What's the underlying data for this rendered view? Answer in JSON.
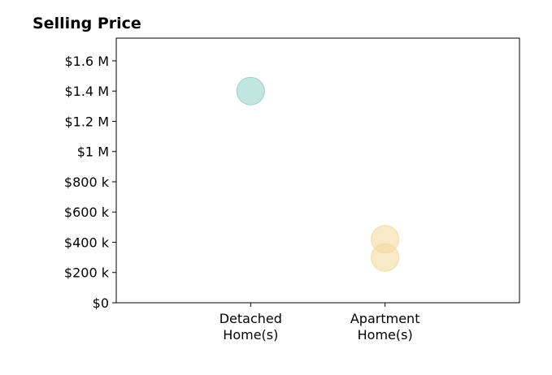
{
  "chart_data": {
    "type": "scatter",
    "title": "Selling Price",
    "xlabel": "",
    "ylabel": "",
    "categories": [
      {
        "lines": [
          "Detached",
          "Home(s)"
        ]
      },
      {
        "lines": [
          "Apartment",
          "Home(s)"
        ]
      }
    ],
    "xlim": [
      0,
      3
    ],
    "ylim": [
      0,
      1750000
    ],
    "y_ticks": [
      {
        "value": 0,
        "label": "$0"
      },
      {
        "value": 200000,
        "label": "$200 k"
      },
      {
        "value": 400000,
        "label": "$400 k"
      },
      {
        "value": 600000,
        "label": "$600 k"
      },
      {
        "value": 800000,
        "label": "$800 k"
      },
      {
        "value": 1000000,
        "label": "$1 M"
      },
      {
        "value": 1200000,
        "label": "$1.2 M"
      },
      {
        "value": 1400000,
        "label": "$1.4 M"
      },
      {
        "value": 1600000,
        "label": "$1.6 M"
      }
    ],
    "grid": false,
    "points": [
      {
        "category": 0,
        "x": 1,
        "y": 1400000,
        "color": "#8ecfc9"
      },
      {
        "category": 1,
        "x": 2,
        "y": 420000,
        "color": "#f2d99b"
      },
      {
        "category": 1,
        "x": 2,
        "y": 300000,
        "color": "#f2d99b"
      }
    ],
    "point_opacity": 0.55
  }
}
